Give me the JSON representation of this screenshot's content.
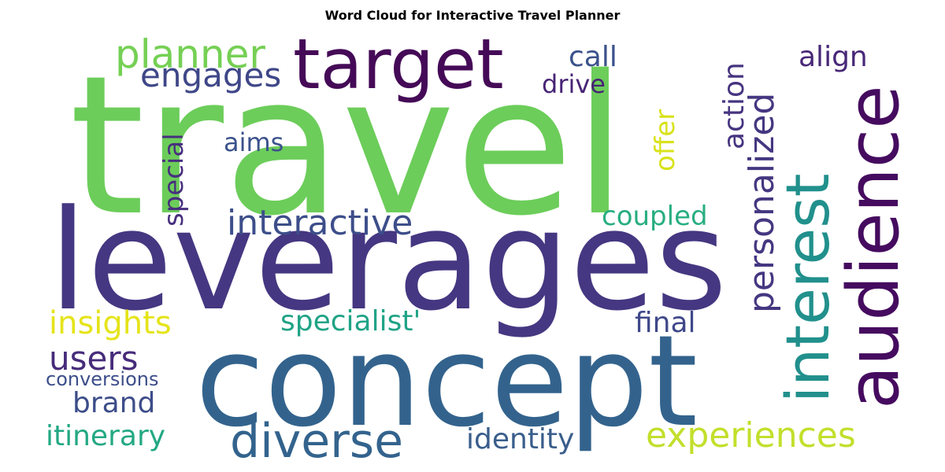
{
  "chart_data": {
    "type": "word_cloud",
    "title": "Word Cloud for Interactive Travel Planner",
    "background": "#ffffff",
    "colormap": "viridis",
    "words": [
      {
        "text": "travel",
        "color": "#6ccd5a"
      },
      {
        "text": "leverages",
        "color": "#453781"
      },
      {
        "text": "concept",
        "color": "#33638d"
      },
      {
        "text": "target",
        "color": "#450a57"
      },
      {
        "text": "audience",
        "color": "#450b5f"
      },
      {
        "text": "interest",
        "color": "#21908c"
      },
      {
        "text": "diverse",
        "color": "#33638d"
      },
      {
        "text": "experiences",
        "color": "#c3df2c"
      },
      {
        "text": "interactive",
        "color": "#3d4e8a"
      },
      {
        "text": "personalized",
        "color": "#453781"
      },
      {
        "text": "planner",
        "color": "#75d054"
      },
      {
        "text": "engages",
        "color": "#3f4788"
      },
      {
        "text": "insights",
        "color": "#e5e419"
      },
      {
        "text": "users",
        "color": "#472c7a"
      },
      {
        "text": "itinerary",
        "color": "#23a883"
      },
      {
        "text": "specialist'",
        "color": "#20a386"
      },
      {
        "text": "identity",
        "color": "#3a5e8c"
      },
      {
        "text": "coupled",
        "color": "#28ae80"
      },
      {
        "text": "action",
        "color": "#463480"
      },
      {
        "text": "special",
        "color": "#472f7d"
      },
      {
        "text": "offer",
        "color": "#d8e219"
      },
      {
        "text": "align",
        "color": "#482878"
      },
      {
        "text": "call",
        "color": "#3b528b"
      },
      {
        "text": "drive",
        "color": "#482475"
      },
      {
        "text": "brand",
        "color": "#3d4d8a"
      },
      {
        "text": "final",
        "color": "#3f4889"
      },
      {
        "text": "aims",
        "color": "#3b528b"
      },
      {
        "text": "conversions",
        "color": "#3d4e8a"
      }
    ]
  }
}
